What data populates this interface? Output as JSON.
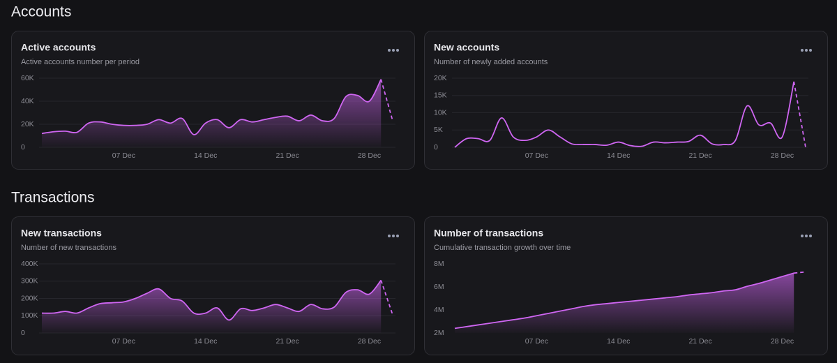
{
  "sections": [
    "Accounts",
    "Transactions"
  ],
  "chart_data": [
    {
      "type": "area",
      "title": "Active accounts",
      "subtitle": "Active accounts number per period",
      "color": "#cf66f2",
      "incomplete_last": true,
      "grid": true,
      "categories": [
        null,
        null,
        null,
        null,
        null,
        null,
        null,
        "07 Dec",
        null,
        null,
        null,
        null,
        null,
        null,
        "14 Dec",
        null,
        null,
        null,
        null,
        null,
        null,
        "21 Dec",
        null,
        null,
        null,
        null,
        null,
        null,
        "28 Dec",
        null,
        null
      ],
      "values": [
        12000,
        13500,
        14000,
        13000,
        21000,
        22000,
        20000,
        19000,
        19000,
        20000,
        24000,
        21000,
        25000,
        11000,
        21000,
        24000,
        17000,
        24000,
        22000,
        24000,
        26000,
        27000,
        23000,
        28000,
        23000,
        25000,
        44000,
        45000,
        40000,
        59000,
        23000
      ],
      "ylim": [
        0,
        60000
      ],
      "yticks": [
        0,
        {
          "value": 20000,
          "label": "20K"
        },
        {
          "value": 40000,
          "label": "40K"
        },
        {
          "value": 60000,
          "label": "60K"
        }
      ]
    },
    {
      "type": "line",
      "title": "New accounts",
      "subtitle": "Number of newly added accounts",
      "color": "#cf66f2",
      "incomplete_last": true,
      "grid": true,
      "categories": [
        null,
        null,
        null,
        null,
        null,
        null,
        null,
        "07 Dec",
        null,
        null,
        null,
        null,
        null,
        null,
        "14 Dec",
        null,
        null,
        null,
        null,
        null,
        null,
        "21 Dec",
        null,
        null,
        null,
        null,
        null,
        null,
        "28 Dec",
        null,
        null
      ],
      "values": [
        0,
        2500,
        2500,
        2000,
        8500,
        3000,
        2000,
        3000,
        5000,
        3000,
        1000,
        800,
        800,
        600,
        1500,
        500,
        300,
        1500,
        1300,
        1500,
        1700,
        3500,
        1000,
        800,
        2000,
        12000,
        6500,
        7000,
        3000,
        19000,
        0
      ],
      "ylim": [
        0,
        20000
      ],
      "yticks": [
        0,
        {
          "value": 5000,
          "label": "5K"
        },
        {
          "value": 10000,
          "label": "10K"
        },
        {
          "value": 15000,
          "label": "15K"
        },
        {
          "value": 20000,
          "label": "20K"
        }
      ]
    },
    {
      "type": "area",
      "title": "New transactions",
      "subtitle": "Number of new transactions",
      "color": "#cf66f2",
      "incomplete_last": true,
      "grid": true,
      "categories": [
        null,
        null,
        null,
        null,
        null,
        null,
        null,
        "07 Dec",
        null,
        null,
        null,
        null,
        null,
        null,
        "14 Dec",
        null,
        null,
        null,
        null,
        null,
        null,
        "21 Dec",
        null,
        null,
        null,
        null,
        null,
        null,
        "28 Dec",
        null,
        null
      ],
      "values": [
        115000,
        115000,
        125000,
        115000,
        145000,
        170000,
        175000,
        180000,
        200000,
        230000,
        255000,
        200000,
        185000,
        115000,
        115000,
        145000,
        75000,
        140000,
        130000,
        145000,
        165000,
        145000,
        125000,
        165000,
        140000,
        150000,
        235000,
        250000,
        225000,
        305000,
        105000
      ],
      "ylim": [
        0,
        400000
      ],
      "yticks": [
        0,
        {
          "value": 100000,
          "label": "100K"
        },
        {
          "value": 200000,
          "label": "200K"
        },
        {
          "value": 300000,
          "label": "300K"
        },
        {
          "value": 400000,
          "label": "400K"
        }
      ]
    },
    {
      "type": "area",
      "title": "Number of transactions",
      "subtitle": "Cumulative transaction growth over time",
      "color": "#cf66f2",
      "incomplete_last": true,
      "grid": false,
      "categories": [
        null,
        null,
        null,
        null,
        null,
        null,
        null,
        "07 Dec",
        null,
        null,
        null,
        null,
        null,
        null,
        "14 Dec",
        null,
        null,
        null,
        null,
        null,
        null,
        "21 Dec",
        null,
        null,
        null,
        null,
        null,
        null,
        "28 Dec",
        null,
        null
      ],
      "values": [
        2400000,
        2550000,
        2700000,
        2850000,
        3000000,
        3150000,
        3300000,
        3500000,
        3700000,
        3900000,
        4100000,
        4300000,
        4450000,
        4550000,
        4650000,
        4750000,
        4850000,
        4950000,
        5050000,
        5150000,
        5300000,
        5400000,
        5500000,
        5650000,
        5750000,
        6050000,
        6300000,
        6600000,
        6900000,
        7200000,
        7300000
      ],
      "ylim": [
        2000000,
        8000000
      ],
      "yticks": [
        {
          "value": 2000000,
          "label": "2M"
        },
        {
          "value": 4000000,
          "label": "4M"
        },
        {
          "value": 6000000,
          "label": "6M"
        },
        {
          "value": 8000000,
          "label": "8M"
        }
      ]
    }
  ]
}
